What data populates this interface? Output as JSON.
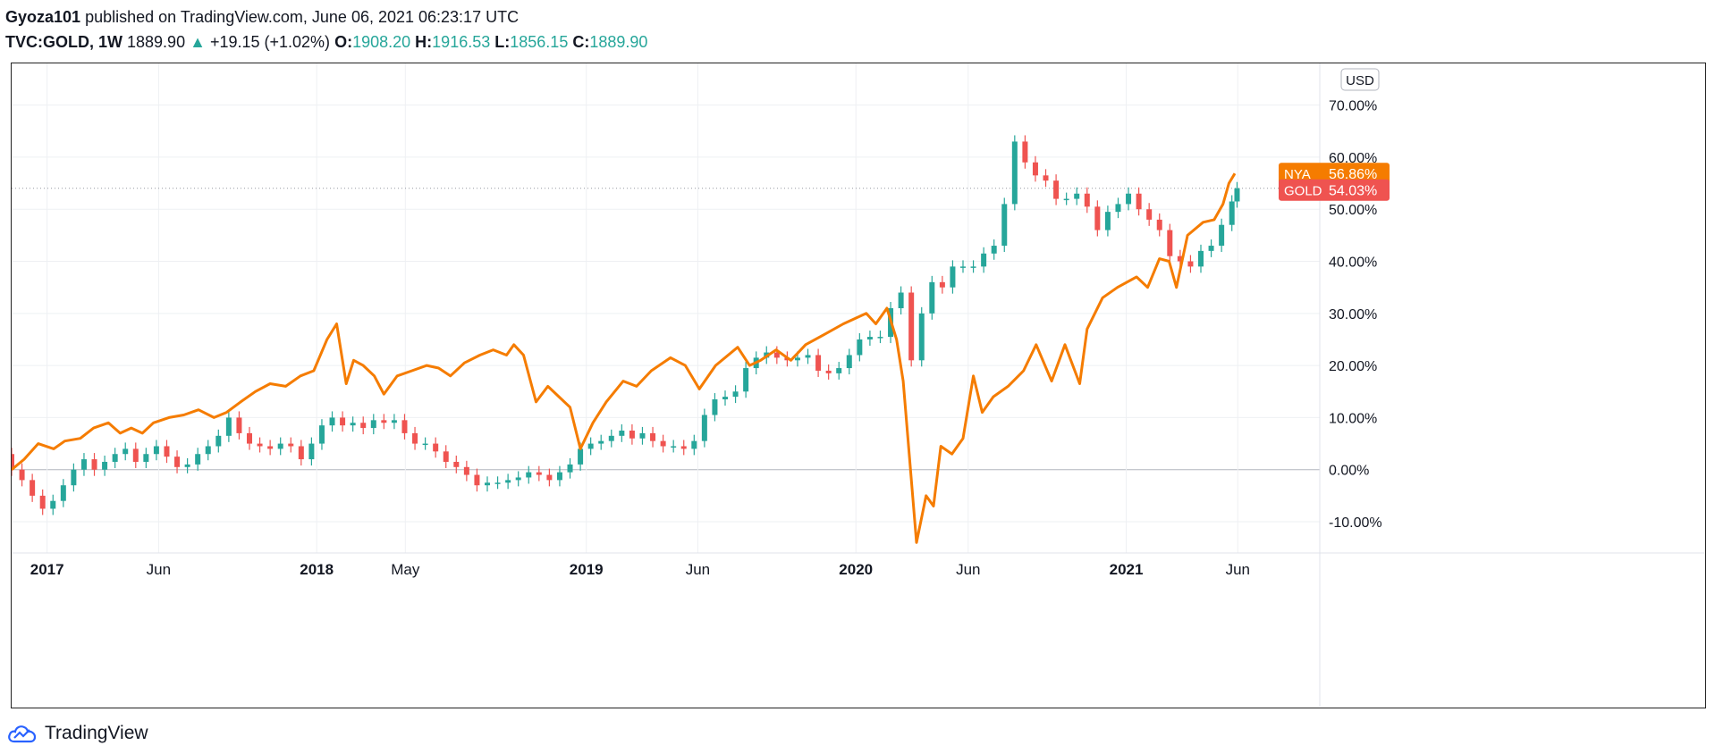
{
  "header": {
    "author": "Gyoza101",
    "published_text": "published on TradingView.com, June 06, 2021 06:23:17 UTC",
    "symbol": "TVC:GOLD, 1W",
    "last": "1889.90",
    "change": "+19.15 (+1.02%)",
    "open_label": "O:",
    "open": "1908.20",
    "high_label": "H:",
    "high": "1916.53",
    "low_label": "L:",
    "low": "1856.15",
    "close_label": "C:",
    "close": "1889.90"
  },
  "footer": {
    "brand": "TradingView"
  },
  "colors": {
    "up": "#26a69a",
    "down": "#ef5350",
    "nya": "#f57c00",
    "grid": "#eef0f3",
    "zero": "#b2b5be"
  },
  "chart_data": {
    "type": "line",
    "currency_label": "USD",
    "y_unit": "%",
    "ylim": [
      -16,
      78
    ],
    "y_ticks": [
      70,
      60,
      50,
      40,
      30,
      20,
      10,
      0,
      -10
    ],
    "y_tick_labels": [
      "70.00%",
      "60.00%",
      "50.00%",
      "40.00%",
      "30.00%",
      "20.00%",
      "10.00%",
      "0.00%",
      "-10.00%"
    ],
    "x_range": [
      "2016-11-14",
      "2021-09-20"
    ],
    "x_ticks": [
      {
        "date": "2017-01-01",
        "label": "2017",
        "bold": true
      },
      {
        "date": "2017-06-01",
        "label": "Jun",
        "bold": false
      },
      {
        "date": "2018-01-01",
        "label": "2018",
        "bold": true
      },
      {
        "date": "2018-05-01",
        "label": "May",
        "bold": false
      },
      {
        "date": "2019-01-01",
        "label": "2019",
        "bold": true
      },
      {
        "date": "2019-06-01",
        "label": "Jun",
        "bold": false
      },
      {
        "date": "2020-01-01",
        "label": "2020",
        "bold": true
      },
      {
        "date": "2020-06-01",
        "label": "Jun",
        "bold": false
      },
      {
        "date": "2021-01-01",
        "label": "2021",
        "bold": true
      },
      {
        "date": "2021-06-01",
        "label": "Jun",
        "bold": false
      }
    ],
    "grid": true,
    "series": [
      {
        "name": "NYA",
        "kind": "line",
        "last_value_label": "56.86%",
        "points": [
          [
            "2016-11-14",
            0
          ],
          [
            "2016-12-01",
            2
          ],
          [
            "2016-12-20",
            5
          ],
          [
            "2017-01-10",
            4
          ],
          [
            "2017-01-25",
            5.5
          ],
          [
            "2017-02-15",
            6
          ],
          [
            "2017-03-05",
            8
          ],
          [
            "2017-03-25",
            9
          ],
          [
            "2017-04-10",
            7
          ],
          [
            "2017-04-25",
            8
          ],
          [
            "2017-05-10",
            7
          ],
          [
            "2017-05-25",
            9
          ],
          [
            "2017-06-15",
            10
          ],
          [
            "2017-07-05",
            10.5
          ],
          [
            "2017-07-25",
            11.5
          ],
          [
            "2017-08-15",
            10
          ],
          [
            "2017-09-01",
            11
          ],
          [
            "2017-09-20",
            13
          ],
          [
            "2017-10-10",
            15
          ],
          [
            "2017-10-30",
            16.5
          ],
          [
            "2017-11-20",
            16
          ],
          [
            "2017-12-10",
            18
          ],
          [
            "2017-12-28",
            19
          ],
          [
            "2018-01-15",
            25
          ],
          [
            "2018-01-28",
            28
          ],
          [
            "2018-02-10",
            16.5
          ],
          [
            "2018-02-20",
            21
          ],
          [
            "2018-03-05",
            20
          ],
          [
            "2018-03-20",
            18
          ],
          [
            "2018-04-02",
            14.5
          ],
          [
            "2018-04-20",
            18
          ],
          [
            "2018-05-10",
            19
          ],
          [
            "2018-05-30",
            20
          ],
          [
            "2018-06-15",
            19.5
          ],
          [
            "2018-07-01",
            18
          ],
          [
            "2018-07-20",
            20.5
          ],
          [
            "2018-08-10",
            22
          ],
          [
            "2018-08-28",
            23
          ],
          [
            "2018-09-15",
            22
          ],
          [
            "2018-09-25",
            24
          ],
          [
            "2018-10-08",
            22
          ],
          [
            "2018-10-25",
            13
          ],
          [
            "2018-11-10",
            16
          ],
          [
            "2018-11-25",
            14
          ],
          [
            "2018-12-10",
            12
          ],
          [
            "2018-12-24",
            4
          ],
          [
            "2019-01-10",
            9
          ],
          [
            "2019-01-28",
            13
          ],
          [
            "2019-02-20",
            17
          ],
          [
            "2019-03-10",
            16
          ],
          [
            "2019-03-30",
            19
          ],
          [
            "2019-04-25",
            21.5
          ],
          [
            "2019-05-15",
            20
          ],
          [
            "2019-06-03",
            15.5
          ],
          [
            "2019-06-25",
            20
          ],
          [
            "2019-07-25",
            23.5
          ],
          [
            "2019-08-10",
            20
          ],
          [
            "2019-08-25",
            21
          ],
          [
            "2019-09-15",
            23
          ],
          [
            "2019-10-05",
            21
          ],
          [
            "2019-10-25",
            24
          ],
          [
            "2019-11-20",
            26
          ],
          [
            "2019-12-15",
            28
          ],
          [
            "2020-01-15",
            30
          ],
          [
            "2020-01-28",
            28
          ],
          [
            "2020-02-12",
            31
          ],
          [
            "2020-02-25",
            25
          ],
          [
            "2020-03-05",
            17
          ],
          [
            "2020-03-23",
            -14
          ],
          [
            "2020-04-05",
            -5
          ],
          [
            "2020-04-15",
            -7
          ],
          [
            "2020-04-25",
            4.5
          ],
          [
            "2020-05-10",
            3
          ],
          [
            "2020-05-25",
            6
          ],
          [
            "2020-06-08",
            18
          ],
          [
            "2020-06-20",
            11
          ],
          [
            "2020-07-05",
            14
          ],
          [
            "2020-07-25",
            16
          ],
          [
            "2020-08-15",
            19
          ],
          [
            "2020-09-01",
            24
          ],
          [
            "2020-09-22",
            17
          ],
          [
            "2020-10-10",
            24
          ],
          [
            "2020-10-30",
            16.5
          ],
          [
            "2020-11-09",
            27
          ],
          [
            "2020-11-30",
            33
          ],
          [
            "2020-12-20",
            35
          ],
          [
            "2021-01-15",
            37
          ],
          [
            "2021-01-30",
            35
          ],
          [
            "2021-02-15",
            40.5
          ],
          [
            "2021-02-28",
            40
          ],
          [
            "2021-03-10",
            35
          ],
          [
            "2021-03-25",
            45
          ],
          [
            "2021-04-15",
            47.5
          ],
          [
            "2021-04-30",
            48
          ],
          [
            "2021-05-12",
            51
          ],
          [
            "2021-05-20",
            55
          ],
          [
            "2021-05-28",
            56.86
          ]
        ]
      },
      {
        "name": "GOLD",
        "kind": "candles",
        "last_value_label": "54.03%",
        "closes": [
          [
            "2016-11-14",
            0
          ],
          [
            "2016-11-28",
            -2
          ],
          [
            "2016-12-12",
            -5
          ],
          [
            "2016-12-26",
            -7.5
          ],
          [
            "2017-01-09",
            -6
          ],
          [
            "2017-01-23",
            -3
          ],
          [
            "2017-02-06",
            0
          ],
          [
            "2017-02-20",
            2
          ],
          [
            "2017-03-06",
            0
          ],
          [
            "2017-03-20",
            1.5
          ],
          [
            "2017-04-03",
            3
          ],
          [
            "2017-04-17",
            4
          ],
          [
            "2017-05-01",
            1.5
          ],
          [
            "2017-05-15",
            3
          ],
          [
            "2017-05-29",
            4.5
          ],
          [
            "2017-06-12",
            2.5
          ],
          [
            "2017-06-26",
            0.5
          ],
          [
            "2017-07-10",
            1
          ],
          [
            "2017-07-24",
            3
          ],
          [
            "2017-08-07",
            4.5
          ],
          [
            "2017-08-21",
            6.5
          ],
          [
            "2017-09-04",
            10
          ],
          [
            "2017-09-18",
            7
          ],
          [
            "2017-10-02",
            5
          ],
          [
            "2017-10-16",
            4.5
          ],
          [
            "2017-10-30",
            4
          ],
          [
            "2017-11-13",
            5
          ],
          [
            "2017-11-27",
            4.5
          ],
          [
            "2017-12-11",
            2
          ],
          [
            "2017-12-25",
            5
          ],
          [
            "2018-01-08",
            8.5
          ],
          [
            "2018-01-22",
            10
          ],
          [
            "2018-02-05",
            8.5
          ],
          [
            "2018-02-19",
            9
          ],
          [
            "2018-03-05",
            8
          ],
          [
            "2018-03-19",
            9.5
          ],
          [
            "2018-04-02",
            9
          ],
          [
            "2018-04-16",
            9.5
          ],
          [
            "2018-04-30",
            7
          ],
          [
            "2018-05-14",
            5
          ],
          [
            "2018-05-28",
            5
          ],
          [
            "2018-06-11",
            3.5
          ],
          [
            "2018-06-25",
            1.5
          ],
          [
            "2018-07-09",
            0.5
          ],
          [
            "2018-07-23",
            -1
          ],
          [
            "2018-08-06",
            -3
          ],
          [
            "2018-08-20",
            -2.5
          ],
          [
            "2018-09-03",
            -2.5
          ],
          [
            "2018-09-17",
            -2
          ],
          [
            "2018-10-01",
            -1.5
          ],
          [
            "2018-10-15",
            -0.5
          ],
          [
            "2018-10-29",
            -1
          ],
          [
            "2018-11-12",
            -2
          ],
          [
            "2018-11-26",
            -0.5
          ],
          [
            "2018-12-10",
            1
          ],
          [
            "2018-12-24",
            4
          ],
          [
            "2019-01-07",
            5
          ],
          [
            "2019-01-21",
            5.5
          ],
          [
            "2019-02-04",
            6.5
          ],
          [
            "2019-02-18",
            7.5
          ],
          [
            "2019-03-04",
            6
          ],
          [
            "2019-03-18",
            7
          ],
          [
            "2019-04-01",
            5.5
          ],
          [
            "2019-04-15",
            4.5
          ],
          [
            "2019-04-29",
            4.5
          ],
          [
            "2019-05-13",
            4
          ],
          [
            "2019-05-27",
            5.5
          ],
          [
            "2019-06-10",
            10.5
          ],
          [
            "2019-06-24",
            13.5
          ],
          [
            "2019-07-08",
            14
          ],
          [
            "2019-07-22",
            15
          ],
          [
            "2019-08-05",
            19.5
          ],
          [
            "2019-08-19",
            21.5
          ],
          [
            "2019-09-02",
            22.5
          ],
          [
            "2019-09-16",
            21.5
          ],
          [
            "2019-09-30",
            21
          ],
          [
            "2019-10-14",
            21.5
          ],
          [
            "2019-10-28",
            22
          ],
          [
            "2019-11-11",
            19
          ],
          [
            "2019-11-25",
            18.5
          ],
          [
            "2019-12-09",
            19.5
          ],
          [
            "2019-12-23",
            22
          ],
          [
            "2020-01-06",
            25
          ],
          [
            "2020-01-20",
            25.5
          ],
          [
            "2020-02-03",
            25.5
          ],
          [
            "2020-02-17",
            31
          ],
          [
            "2020-03-02",
            34
          ],
          [
            "2020-03-16",
            21
          ],
          [
            "2020-03-30",
            30
          ],
          [
            "2020-04-13",
            36
          ],
          [
            "2020-04-27",
            35
          ],
          [
            "2020-05-11",
            39
          ],
          [
            "2020-05-25",
            39
          ],
          [
            "2020-06-08",
            39
          ],
          [
            "2020-06-22",
            41.5
          ],
          [
            "2020-07-06",
            43
          ],
          [
            "2020-07-20",
            51
          ],
          [
            "2020-08-03",
            63
          ],
          [
            "2020-08-17",
            59
          ],
          [
            "2020-08-31",
            56.5
          ],
          [
            "2020-09-14",
            55.5
          ],
          [
            "2020-09-28",
            52
          ],
          [
            "2020-10-12",
            52
          ],
          [
            "2020-10-26",
            53
          ],
          [
            "2020-11-09",
            50.5
          ],
          [
            "2020-11-23",
            46
          ],
          [
            "2020-12-07",
            49.5
          ],
          [
            "2020-12-21",
            51
          ],
          [
            "2021-01-04",
            53
          ],
          [
            "2021-01-18",
            50
          ],
          [
            "2021-02-01",
            48
          ],
          [
            "2021-02-15",
            46
          ],
          [
            "2021-03-01",
            41
          ],
          [
            "2021-03-15",
            40
          ],
          [
            "2021-03-29",
            39
          ],
          [
            "2021-04-12",
            42
          ],
          [
            "2021-04-26",
            43
          ],
          [
            "2021-05-10",
            47
          ],
          [
            "2021-05-24",
            51.5
          ],
          [
            "2021-05-31",
            54.03
          ]
        ]
      }
    ],
    "reference_line": 54.03
  }
}
